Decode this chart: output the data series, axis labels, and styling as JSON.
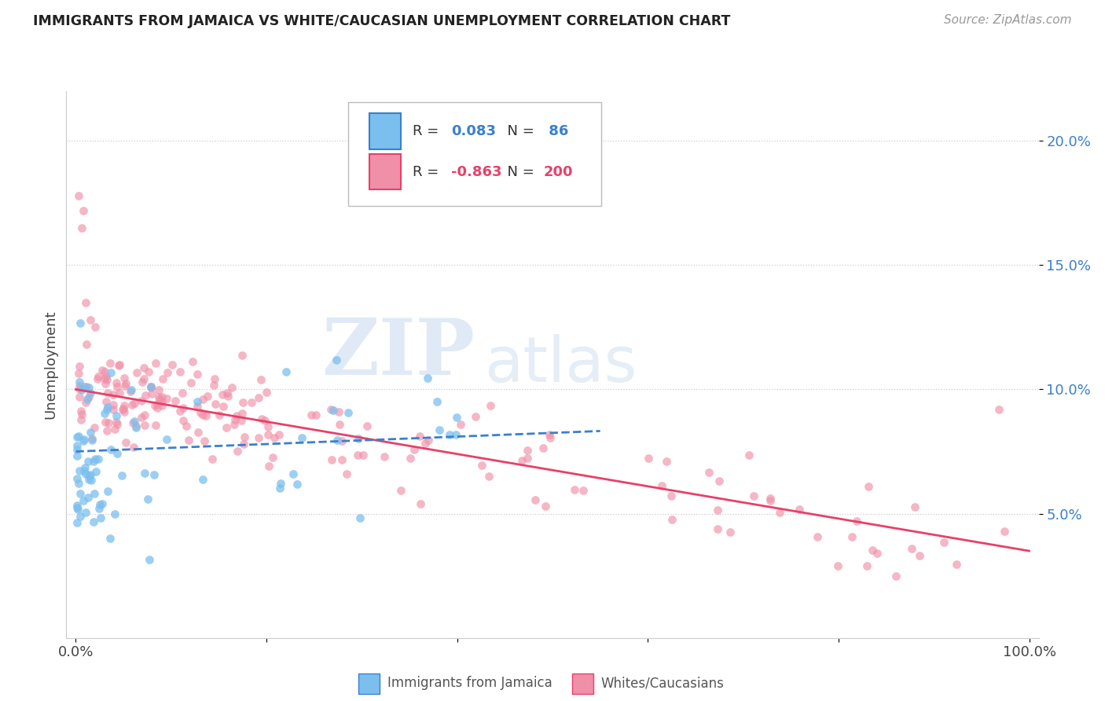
{
  "title": "IMMIGRANTS FROM JAMAICA VS WHITE/CAUCASIAN UNEMPLOYMENT CORRELATION CHART",
  "source": "Source: ZipAtlas.com",
  "ylabel": "Unemployment",
  "yticks": [
    0.05,
    0.1,
    0.15,
    0.2
  ],
  "ytick_labels": [
    "5.0%",
    "10.0%",
    "15.0%",
    "20.0%"
  ],
  "blue_color": "#7bbfee",
  "pink_color": "#f090a8",
  "blue_line_color": "#3a80cc",
  "pink_line_color": "#e8406a",
  "R_blue": 0.083,
  "N_blue": 86,
  "R_pink": -0.863,
  "N_pink": 200,
  "watermark_zip": "ZIP",
  "watermark_atlas": "atlas",
  "legend_label_blue": "Immigrants from Jamaica",
  "legend_label_pink": "Whites/Caucasians",
  "xmin": 0.0,
  "xmax": 1.0,
  "ymin": 0.0,
  "ymax": 0.22,
  "blue_trend_x0": 0.0,
  "blue_trend_y0": 0.075,
  "blue_trend_x1": 1.0,
  "blue_trend_y1": 0.09,
  "pink_trend_x0": 0.0,
  "pink_trend_y0": 0.1,
  "pink_trend_x1": 1.0,
  "pink_trend_y1": 0.035
}
